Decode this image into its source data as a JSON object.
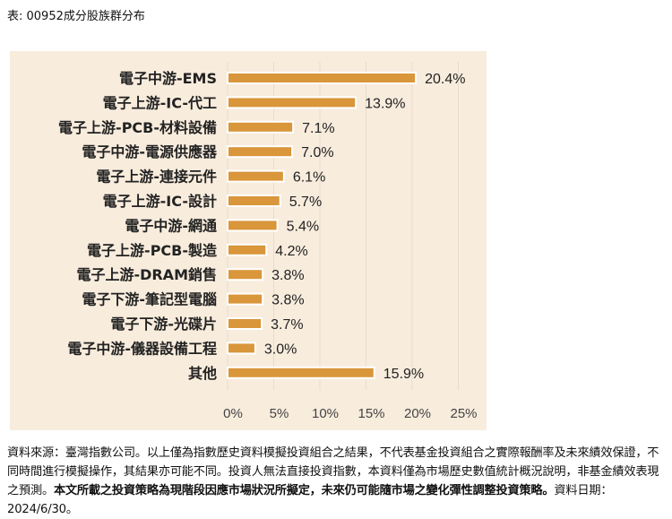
{
  "title": "表: 00952成分股族群分布",
  "chart_data": {
    "type": "bar",
    "orientation": "horizontal",
    "categories": [
      "電子中游-EMS",
      "電子上游-IC-代工",
      "電子上游-PCB-材料設備",
      "電子中游-電源供應器",
      "電子上游-連接元件",
      "電子上游-IC-設計",
      "電子中游-網通",
      "電子上游-PCB-製造",
      "電子上游-DRAM銷售",
      "電子下游-筆記型電腦",
      "電子下游-光碟片",
      "電子中游-儀器設備工程",
      "其他"
    ],
    "values": [
      20.4,
      13.9,
      7.1,
      7.0,
      6.1,
      5.7,
      5.4,
      4.2,
      3.8,
      3.8,
      3.7,
      3.0,
      15.9
    ],
    "data_labels": [
      "20.4%",
      "13.9%",
      "7.1%",
      "7.0%",
      "6.1%",
      "5.7%",
      "5.4%",
      "4.2%",
      "3.8%",
      "3.8%",
      "3.7%",
      "3.0%",
      "15.9%"
    ],
    "xlim": [
      0,
      25
    ],
    "x_ticks": [
      "0%",
      "5%",
      "10%",
      "15%",
      "20%",
      "25%"
    ],
    "grid": true,
    "bar_color": "#d9963a",
    "background": "#f8ecdd"
  },
  "note": {
    "part1": "資料來源：臺灣指數公司。以上僅為指數歷史資料模擬投資組合之結果，不代表基金投資組合之實際報酬率及未來績效保證，不同時間進行模擬操作，其結果亦可能不同。投資人無法直接投資指數，本資料僅為市場歷史數值統計概況說明，非基金績效表現之預測。",
    "bold": "本文所載之投資策略為現階段因應市場狀況所擬定，未來仍可能隨市場之變化彈性調整投資策略。",
    "part2": "資料日期：2024/6/30。"
  }
}
